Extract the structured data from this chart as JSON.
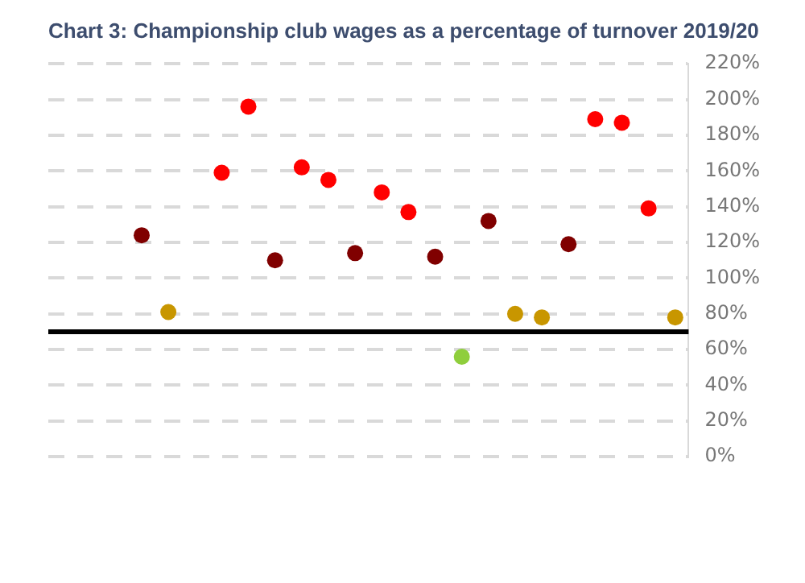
{
  "chart_data": {
    "type": "scatter",
    "title": "Chart 3: Championship club wages as a percentage of turnover 2019/20",
    "categories": [
      null,
      null,
      null,
      null,
      null,
      null,
      null,
      null,
      null,
      null,
      null,
      null,
      null,
      null,
      null,
      null,
      null,
      null,
      null,
      null,
      null,
      null,
      null,
      null
    ],
    "values": [
      null,
      null,
      null,
      124,
      81,
      null,
      159,
      196,
      110,
      162,
      155,
      114,
      148,
      137,
      112,
      56,
      132,
      80,
      78,
      119,
      189,
      187,
      139,
      78
    ],
    "colors": [
      "#ff0000",
      "#ff0000",
      "#ff0000",
      "#800000",
      "#c89600",
      "#ff0000",
      "#ff0000",
      "#ff0000",
      "#800000",
      "#ff0000",
      "#ff0000",
      "#800000",
      "#ff0000",
      "#ff0000",
      "#800000",
      "#8fce3c",
      "#800000",
      "#c89600",
      "#c89600",
      "#800000",
      "#ff0000",
      "#ff0000",
      "#ff0000",
      "#c89600"
    ],
    "ylim": [
      0,
      220
    ],
    "yticks": [
      {
        "value": 0,
        "label": "0%"
      },
      {
        "value": 20,
        "label": "20%"
      },
      {
        "value": 40,
        "label": "40%"
      },
      {
        "value": 60,
        "label": "60%"
      },
      {
        "value": 80,
        "label": "80%"
      },
      {
        "value": 100,
        "label": "100%"
      },
      {
        "value": 120,
        "label": "120%"
      },
      {
        "value": 140,
        "label": "140%"
      },
      {
        "value": 160,
        "label": "160%"
      },
      {
        "value": 180,
        "label": "180%"
      },
      {
        "value": 200,
        "label": "200%"
      },
      {
        "value": 220,
        "label": "220%"
      }
    ],
    "ref_lines": [
      {
        "axis": "y",
        "value": 70,
        "color": "#000000"
      }
    ],
    "grid": "y",
    "marker": "circle",
    "legend": false
  }
}
